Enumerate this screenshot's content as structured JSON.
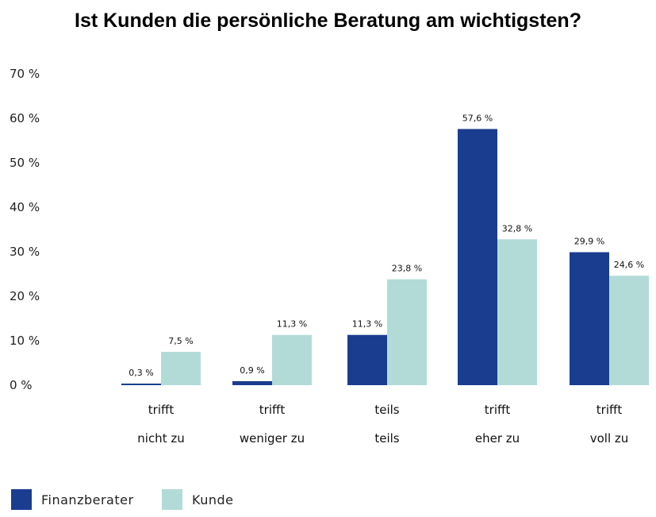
{
  "chart_data": {
    "type": "bar",
    "title": "Ist Kunden die persönliche Beratung am wichtigsten?",
    "ylim": [
      0,
      70
    ],
    "y_ticks": [
      "70 %",
      "60 %",
      "50 %",
      "40 %",
      "30 %",
      "20 %",
      "10 %",
      "0 %"
    ],
    "categories": [
      [
        "trifft",
        "nicht zu"
      ],
      [
        "trifft",
        "weniger zu"
      ],
      [
        "teils",
        "teils"
      ],
      [
        "trifft",
        "eher zu"
      ],
      [
        "trifft",
        "voll zu"
      ]
    ],
    "series": [
      {
        "name": "Finanzberater",
        "color": "#1a3d8f",
        "values": [
          0.3,
          0.9,
          11.3,
          57.6,
          29.9
        ],
        "labels": [
          "0,3 %",
          "0,9 %",
          "11,3 %",
          "57,6 %",
          "29,9 %"
        ]
      },
      {
        "name": "Kunde",
        "color": "#b2dbd8",
        "values": [
          7.5,
          11.3,
          23.8,
          32.8,
          24.6
        ],
        "labels": [
          "7,5 %",
          "11,3 %",
          "23,8 %",
          "32,8 %",
          "24,6 %"
        ]
      }
    ],
    "grid": false,
    "legend_position": "bottom-left"
  }
}
